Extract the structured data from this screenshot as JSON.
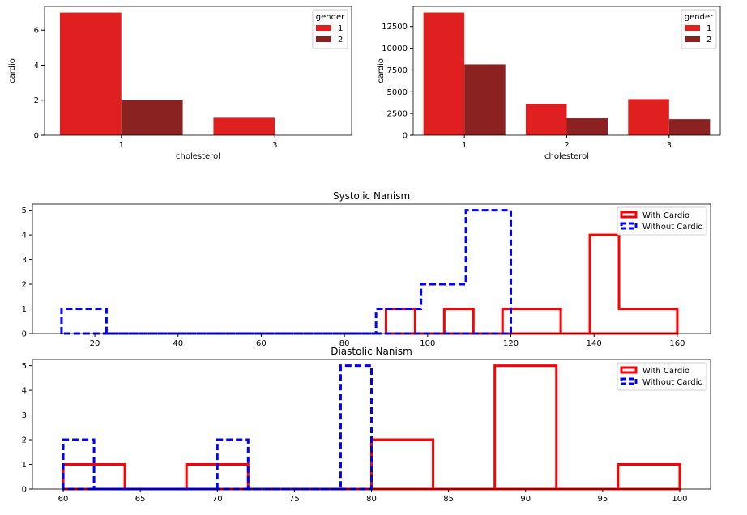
{
  "chart_data": [
    {
      "type": "bar",
      "xlabel": "cholesterol",
      "ylabel": "cardio",
      "categories": [
        "1",
        "3"
      ],
      "legend": {
        "title": "gender",
        "placement": "top-right"
      },
      "series": [
        {
          "name": "1",
          "values": [
            7,
            1
          ]
        },
        {
          "name": "2",
          "values": [
            2,
            0
          ]
        }
      ],
      "ylim": [
        0,
        7.35
      ],
      "yticks": [
        0,
        2,
        4,
        6
      ],
      "grid": false
    },
    {
      "type": "bar",
      "xlabel": "cholesterol",
      "ylabel": "cardio",
      "categories": [
        "1",
        "2",
        "3"
      ],
      "legend": {
        "title": "gender",
        "placement": "top-right"
      },
      "series": [
        {
          "name": "1",
          "values": [
            14100,
            3600,
            4150
          ]
        },
        {
          "name": "2",
          "values": [
            8150,
            1950,
            1850
          ]
        }
      ],
      "ylim": [
        0,
        14800
      ],
      "yticks": [
        0,
        2500,
        5000,
        7500,
        10000,
        12500
      ],
      "grid": false
    },
    {
      "type": "histogram",
      "title": "Systolic Nanism",
      "xlim": [
        5,
        168
      ],
      "ylim": [
        0,
        5.25
      ],
      "xticks": [
        20,
        40,
        60,
        80,
        100,
        120,
        140,
        160
      ],
      "yticks": [
        0,
        1,
        2,
        3,
        4,
        5
      ],
      "legend": {
        "placement": "top-right"
      },
      "grid": false,
      "series": [
        {
          "name": "With Cardio",
          "style": "solid",
          "bin_edges": [
            90,
            97,
            104,
            111,
            118,
            125,
            132,
            139,
            146,
            153,
            160
          ],
          "counts": [
            1,
            0,
            1,
            0,
            1,
            1,
            0,
            4,
            1,
            1
          ]
        },
        {
          "name": "Without Cardio",
          "style": "dashed",
          "bin_edges": [
            12,
            22.8,
            33.6,
            44.4,
            55.2,
            66,
            76.8,
            87.6,
            98.4,
            109.2,
            120
          ],
          "counts": [
            1,
            0,
            0,
            0,
            0,
            0,
            0,
            1,
            2,
            5
          ]
        }
      ]
    },
    {
      "type": "histogram",
      "title": "Diastolic Nanism",
      "xlim": [
        58,
        102
      ],
      "ylim": [
        0,
        5.25
      ],
      "xticks": [
        60,
        65,
        70,
        75,
        80,
        85,
        90,
        95,
        100
      ],
      "yticks": [
        0,
        1,
        2,
        3,
        4,
        5
      ],
      "legend": {
        "placement": "top-right"
      },
      "grid": false,
      "series": [
        {
          "name": "With Cardio",
          "style": "solid",
          "bin_edges": [
            60,
            64,
            68,
            72,
            76,
            80,
            84,
            88,
            92,
            96,
            100
          ],
          "counts": [
            1,
            0,
            1,
            0,
            0,
            2,
            0,
            5,
            0,
            1
          ]
        },
        {
          "name": "Without Cardio",
          "style": "dashed",
          "bin_edges": [
            60,
            62,
            64,
            66,
            68,
            70,
            72,
            74,
            76,
            78,
            80
          ],
          "counts": [
            2,
            0,
            0,
            0,
            0,
            2,
            0,
            0,
            0,
            5
          ]
        }
      ]
    }
  ],
  "colors": {
    "gender_1": "#e02020",
    "gender_2": "#8b2222",
    "with_cardio": "#ff0000",
    "without_cardio": "#0000ff"
  }
}
